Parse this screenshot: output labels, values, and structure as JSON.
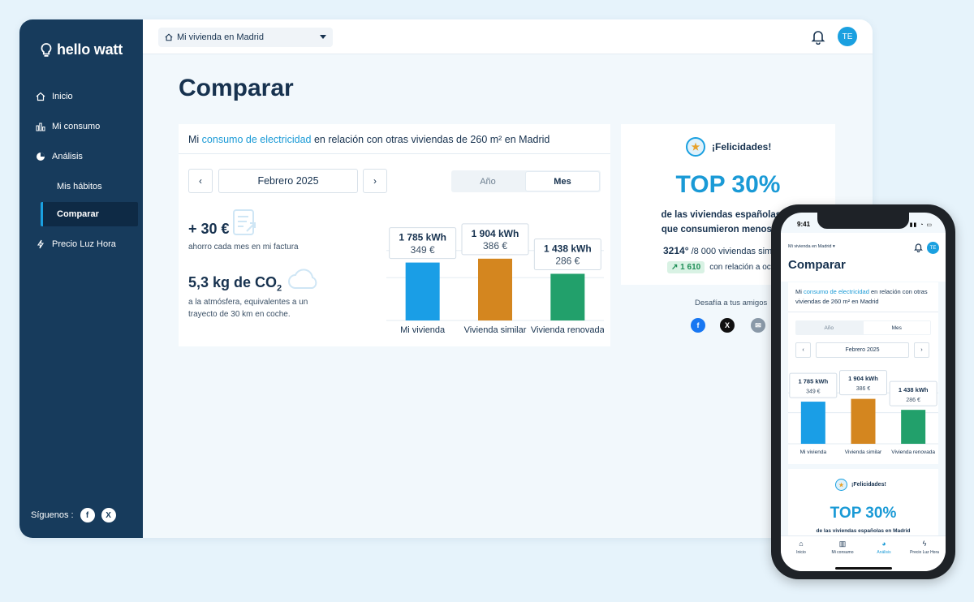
{
  "brand": {
    "name": "hello watt"
  },
  "sidebar": {
    "items": [
      {
        "label": "Inicio",
        "icon": "home-icon"
      },
      {
        "label": "Mi consumo",
        "icon": "bar-chart-icon"
      },
      {
        "label": "Análisis",
        "icon": "pie-chart-icon"
      },
      {
        "label": "Mis hábitos"
      },
      {
        "label": "Comparar",
        "active": true
      },
      {
        "label": "Precio Luz Hora",
        "icon": "bolt-icon"
      }
    ],
    "follow_label": "Síguenos :"
  },
  "topbar": {
    "home_selector": "Mi vivienda en Madrid",
    "avatar_initials": "TE"
  },
  "page": {
    "title": "Comparar"
  },
  "comparison_card": {
    "heading_pre": "Mi ",
    "heading_link": "consumo de electricidad",
    "heading_post": " en relación con otras viviendas de 260 m² en Madrid",
    "period": "Febrero 2025",
    "toggle": {
      "year": "Año",
      "month": "Mes",
      "selected": "Mes"
    },
    "saving_value": "+ 30 €",
    "saving_label": "ahorro cada mes en mi factura",
    "co2_value": "5,3 kg de CO",
    "co2_sub": "2",
    "co2_label": "a la atmósfera, equivalentes a un trayecto de 30 km en coche."
  },
  "chart_data": {
    "type": "bar",
    "categories": [
      "Mi vivienda",
      "Vivienda similar",
      "Vivienda renovada"
    ],
    "series": [
      {
        "values": [
          1785,
          1904,
          1438
        ]
      }
    ],
    "value_labels": [
      "1 785 kWh",
      "1 904 kWh",
      "1 438 kWh"
    ],
    "cost_labels": [
      "349 €",
      "386 €",
      "286 €"
    ],
    "colors": [
      "#1a9ee6",
      "#d4861f",
      "#22a06b"
    ],
    "ylim": [
      0,
      2200
    ]
  },
  "ranking_card": {
    "congrats": "¡Felicidades!",
    "top": "TOP 30%",
    "line1": "de las viviendas españolas en M",
    "line2": "que consumieron menos en nov",
    "rank_value": "3214°",
    "rank_total": "/8 000 viviendas sim",
    "trend_value": "1 610",
    "trend_label": "con relación a oct",
    "challenge": "Desafía a tus amigos",
    "share": [
      "f",
      "X",
      "✉"
    ]
  },
  "phone": {
    "time": "9:41",
    "home_selector": "Mi vivienda en Madrid",
    "avatar_initials": "TE",
    "title": "Comparar",
    "heading_pre": "Mi ",
    "heading_link": "consumo de electricidad",
    "heading_post": " en relación con otras viviendas de 260 m² en Madrid",
    "toggle": {
      "year": "Año",
      "month": "Mes"
    },
    "period": "Febrero 2025",
    "congrats": "¡Felicidades!",
    "top": "TOP 30%",
    "top_sub": "de las viviendas españolas en Madrid",
    "tabs": [
      "Inicio",
      "Mi consumo",
      "Análisis",
      "Precio Luz Hora"
    ]
  }
}
